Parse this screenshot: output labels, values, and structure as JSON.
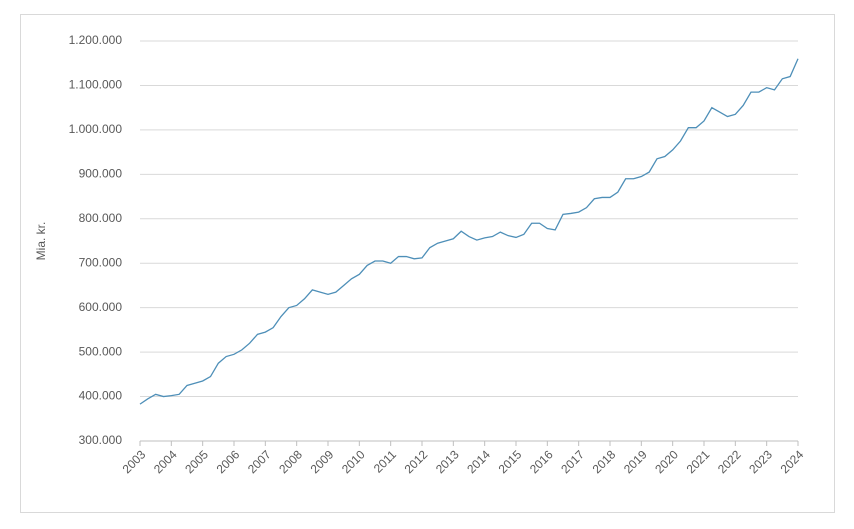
{
  "chart_data": {
    "type": "line",
    "ylabel": "Mia. kr.",
    "x": [
      2003,
      2003.25,
      2003.5,
      2003.75,
      2004,
      2004.25,
      2004.5,
      2004.75,
      2005,
      2005.25,
      2005.5,
      2005.75,
      2006,
      2006.25,
      2006.5,
      2006.75,
      2007,
      2007.25,
      2007.5,
      2007.75,
      2008,
      2008.25,
      2008.5,
      2008.75,
      2009,
      2009.25,
      2009.5,
      2009.75,
      2010,
      2010.25,
      2010.5,
      2010.75,
      2011,
      2011.25,
      2011.5,
      2011.75,
      2012,
      2012.25,
      2012.5,
      2012.75,
      2013,
      2013.25,
      2013.5,
      2013.75,
      2014,
      2014.25,
      2014.5,
      2014.75,
      2015,
      2015.25,
      2015.5,
      2015.75,
      2016,
      2016.25,
      2016.5,
      2016.75,
      2017,
      2017.25,
      2017.5,
      2017.75,
      2018,
      2018.25,
      2018.5,
      2018.75,
      2019,
      2019.25,
      2019.5,
      2019.75,
      2020,
      2020.25,
      2020.5,
      2020.75,
      2021,
      2021.25,
      2021.5,
      2021.75,
      2022,
      2022.25,
      2022.5,
      2022.75,
      2023,
      2023.25,
      2023.5,
      2023.75,
      2024
    ],
    "series": [
      {
        "color": "#4e8fb8",
        "values": [
          383000,
          395000,
          405000,
          400000,
          402000,
          405000,
          425000,
          430000,
          435000,
          445000,
          475000,
          490000,
          495000,
          505000,
          520000,
          540000,
          545000,
          555000,
          580000,
          600000,
          605000,
          620000,
          640000,
          635000,
          630000,
          635000,
          650000,
          665000,
          675000,
          695000,
          705000,
          705000,
          700000,
          715000,
          715000,
          710000,
          712000,
          735000,
          745000,
          750000,
          755000,
          772000,
          760000,
          752000,
          757000,
          760000,
          770000,
          762000,
          758000,
          765000,
          790000,
          790000,
          778000,
          775000,
          810000,
          812000,
          815000,
          825000,
          845000,
          848000,
          848000,
          860000,
          890000,
          890000,
          895000,
          905000,
          935000,
          940000,
          955000,
          975000,
          1005000,
          1005000,
          1020000,
          1050000,
          1040000,
          1030000,
          1035000,
          1055000,
          1085000,
          1085000,
          1095000,
          1090000,
          1115000,
          1120000,
          1160000
        ]
      }
    ],
    "xlim": [
      2003,
      2024
    ],
    "xticks": [
      2003,
      2004,
      2005,
      2006,
      2007,
      2008,
      2009,
      2010,
      2011,
      2012,
      2013,
      2014,
      2015,
      2016,
      2017,
      2018,
      2019,
      2020,
      2021,
      2022,
      2023,
      2024
    ],
    "ylim": [
      300000,
      1200000
    ],
    "yticks": [
      {
        "value": 300000,
        "label": "300.000"
      },
      {
        "value": 400000,
        "label": "400.000"
      },
      {
        "value": 500000,
        "label": "500.000"
      },
      {
        "value": 600000,
        "label": "600.000"
      },
      {
        "value": 700000,
        "label": "700.000"
      },
      {
        "value": 800000,
        "label": "800.000"
      },
      {
        "value": 900000,
        "label": "900.000"
      },
      {
        "value": 1000000,
        "label": "1.000.000"
      },
      {
        "value": 1100000,
        "label": "1.100.000"
      },
      {
        "value": 1200000,
        "label": "1.200.000"
      }
    ],
    "grid": true
  }
}
